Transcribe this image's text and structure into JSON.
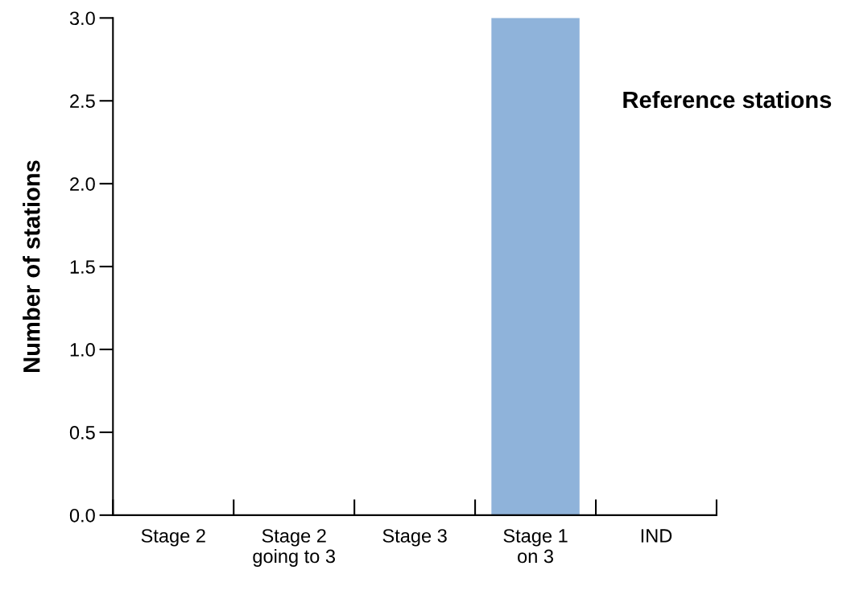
{
  "chart_data": {
    "type": "bar",
    "title": "Reference stations",
    "ylabel": "Number of stations",
    "categories": [
      "Stage 2",
      "Stage 2\ngoing to 3",
      "Stage 3",
      "Stage 1\non 3",
      "IND"
    ],
    "values": [
      0,
      0,
      0,
      3,
      0
    ],
    "color": "#8fb3da",
    "ylim": [
      0,
      3
    ],
    "yticks": [
      {
        "value": 0,
        "label": "0.0"
      },
      {
        "value": 0.5,
        "label": "0.5"
      },
      {
        "value": 1,
        "label": "1.0"
      },
      {
        "value": 1.5,
        "label": "1.5"
      },
      {
        "value": 2,
        "label": "2.0"
      },
      {
        "value": 2.5,
        "label": "2.5"
      },
      {
        "value": 3,
        "label": "3.0"
      }
    ],
    "grid": false
  }
}
